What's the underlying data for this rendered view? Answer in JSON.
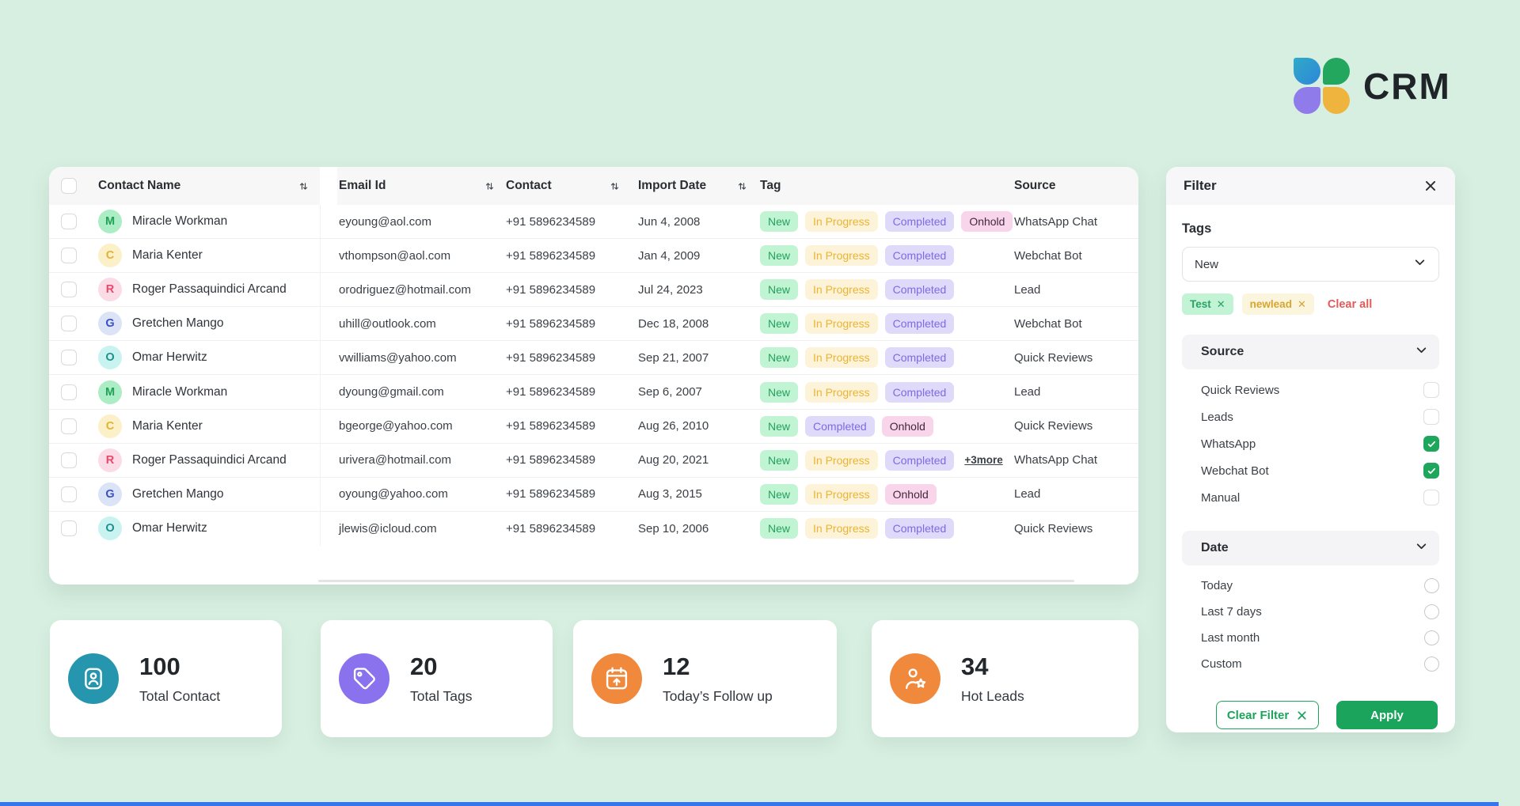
{
  "brand": {
    "name": "CRM"
  },
  "table": {
    "headers": [
      {
        "label": "Contact Name",
        "sortable": true
      },
      {
        "label": "Email Id",
        "sortable": true
      },
      {
        "label": "Contact",
        "sortable": true
      },
      {
        "label": "Import Date",
        "sortable": true
      },
      {
        "label": "Tag",
        "sortable": false
      },
      {
        "label": "Source",
        "sortable": false
      }
    ],
    "rows": [
      {
        "initial": "M",
        "avatar_color": "green",
        "name": "Miracle Workman",
        "email": "eyoung@aol.com",
        "contact": "+91 5896234589",
        "import_date": "Jun 4, 2008",
        "tags": [
          "New",
          "In Progress",
          "Completed",
          "Onhold"
        ],
        "more": null,
        "source": "WhatsApp Chat"
      },
      {
        "initial": "C",
        "avatar_color": "yellow",
        "name": "Maria Kenter",
        "email": "vthompson@aol.com",
        "contact": "+91 5896234589",
        "import_date": "Jan 4, 2009",
        "tags": [
          "New",
          "In Progress",
          "Completed"
        ],
        "more": null,
        "source": "Webchat Bot"
      },
      {
        "initial": "R",
        "avatar_color": "pink",
        "name": "Roger Passaquindici Arcand",
        "email": "orodriguez@hotmail.com",
        "contact": "+91 5896234589",
        "import_date": "Jul 24, 2023",
        "tags": [
          "New",
          "In Progress",
          "Completed"
        ],
        "more": null,
        "source": "Lead"
      },
      {
        "initial": "G",
        "avatar_color": "blue",
        "name": "Gretchen Mango",
        "email": "uhill@outlook.com",
        "contact": "+91 5896234589",
        "import_date": "Dec 18, 2008",
        "tags": [
          "New",
          "In Progress",
          "Completed"
        ],
        "more": null,
        "source": "Webchat Bot"
      },
      {
        "initial": "O",
        "avatar_color": "cyan",
        "name": "Omar Herwitz",
        "email": "vwilliams@yahoo.com",
        "contact": "+91 5896234589",
        "import_date": "Sep 21, 2007",
        "tags": [
          "New",
          "In Progress",
          "Completed"
        ],
        "more": null,
        "source": "Quick Reviews"
      },
      {
        "initial": "M",
        "avatar_color": "green",
        "name": "Miracle Workman",
        "email": "dyoung@gmail.com",
        "contact": "+91 5896234589",
        "import_date": "Sep 6, 2007",
        "tags": [
          "New",
          "In Progress",
          "Completed"
        ],
        "more": null,
        "source": "Lead"
      },
      {
        "initial": "C",
        "avatar_color": "yellow",
        "name": "Maria Kenter",
        "email": "bgeorge@yahoo.com",
        "contact": "+91 5896234589",
        "import_date": "Aug 26, 2010",
        "tags": [
          "New",
          "Completed",
          "Onhold"
        ],
        "more": null,
        "source": "Quick Reviews"
      },
      {
        "initial": "R",
        "avatar_color": "pink",
        "name": "Roger Passaquindici Arcand",
        "email": "urivera@hotmail.com",
        "contact": "+91 5896234589",
        "import_date": "Aug 20, 2021",
        "tags": [
          "New",
          "In Progress",
          "Completed"
        ],
        "more": "+3more",
        "source": "WhatsApp Chat"
      },
      {
        "initial": "G",
        "avatar_color": "blue",
        "name": "Gretchen Mango",
        "email": "oyoung@yahoo.com",
        "contact": "+91 5896234589",
        "import_date": "Aug 3, 2015",
        "tags": [
          "New",
          "In Progress",
          "Onhold"
        ],
        "more": null,
        "source": "Lead"
      },
      {
        "initial": "O",
        "avatar_color": "cyan",
        "name": "Omar Herwitz",
        "email": "jlewis@icloud.com",
        "contact": "+91 5896234589",
        "import_date": "Sep 10, 2006",
        "tags": [
          "New",
          "In Progress",
          "Completed"
        ],
        "more": null,
        "source": "Quick Reviews"
      }
    ]
  },
  "filter": {
    "title": "Filter",
    "tags": {
      "label": "Tags",
      "selected": "New",
      "chips": [
        {
          "label": "Test",
          "color": "green"
        },
        {
          "label": "newlead",
          "color": "yellow"
        }
      ],
      "clear_all": "Clear all"
    },
    "source": {
      "label": "Source",
      "options": [
        {
          "label": "Quick Reviews",
          "checked": false
        },
        {
          "label": "Leads",
          "checked": false
        },
        {
          "label": "WhatsApp",
          "checked": true
        },
        {
          "label": "Webchat Bot",
          "checked": true
        },
        {
          "label": "Manual",
          "checked": false
        }
      ]
    },
    "date": {
      "label": "Date",
      "options": [
        {
          "label": "Today",
          "selected": false
        },
        {
          "label": "Last 7 days",
          "selected": false
        },
        {
          "label": "Last month",
          "selected": false
        },
        {
          "label": "Custom",
          "selected": false
        }
      ]
    },
    "clear_button": "Clear Filter",
    "apply_button": "Apply"
  },
  "stats": [
    {
      "value": "100",
      "label": "Total Contact",
      "icon": "contact-card-icon",
      "color": "#2696AF"
    },
    {
      "value": "20",
      "label": "Total Tags",
      "icon": "tag-icon",
      "color": "#8A72EE"
    },
    {
      "value": "12",
      "label": "Today’s Follow up",
      "icon": "calendar-up-icon",
      "color": "#F0893C"
    },
    {
      "value": "34",
      "label": "Hot Leads",
      "icon": "person-star-icon",
      "color": "#F0893C"
    }
  ],
  "colors": {
    "background": "#D7EFE1",
    "accent_green": "#1BA45C",
    "danger_red": "#E15B5B"
  }
}
